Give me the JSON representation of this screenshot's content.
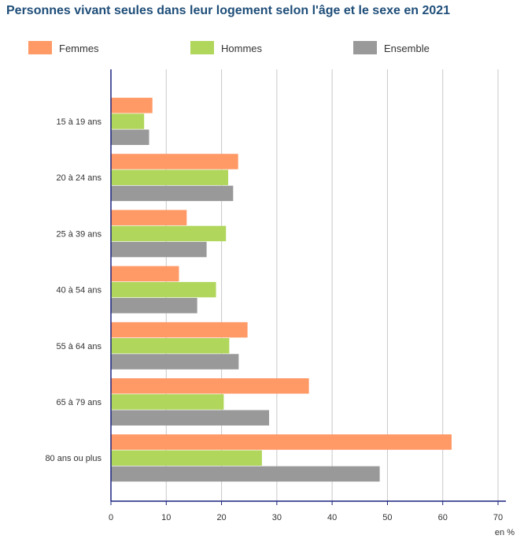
{
  "title": "Personnes vivant seules dans leur logement selon l'âge et le sexe en 2021",
  "chart_data": {
    "type": "bar",
    "orientation": "horizontal",
    "title": "Personnes vivant seules dans leur logement selon l'âge et le sexe en 2021",
    "categories": [
      "15 à 19 ans",
      "20 à 24 ans",
      "25 à 39 ans",
      "40 à 54 ans",
      "55 à 64 ans",
      "65 à 79 ans",
      "80 ans ou plus"
    ],
    "series": [
      {
        "name": "Femmes",
        "color": "#ff9966",
        "values": [
          7.5,
          23.0,
          13.7,
          12.3,
          24.7,
          35.8,
          61.6
        ]
      },
      {
        "name": "Hommes",
        "color": "#b0d65c",
        "values": [
          6.0,
          21.2,
          20.8,
          19.0,
          21.4,
          20.4,
          27.3
        ]
      },
      {
        "name": "Ensemble",
        "color": "#999999",
        "values": [
          6.9,
          22.1,
          17.3,
          15.6,
          23.1,
          28.6,
          48.6
        ]
      }
    ],
    "xlim": [
      0,
      70
    ],
    "xticks": [
      0,
      10,
      20,
      30,
      40,
      50,
      60,
      70
    ],
    "xlabel": "en %",
    "ylabel": "",
    "grid": true,
    "legend": "top"
  }
}
